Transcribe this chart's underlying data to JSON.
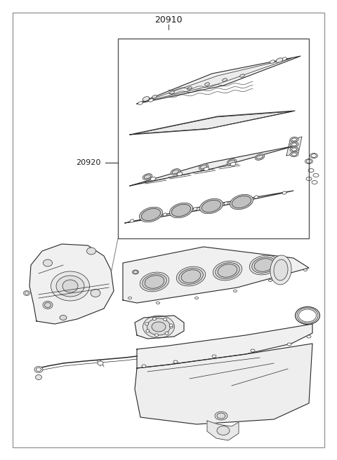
{
  "title": "20910",
  "label_20920": "20920",
  "bg_color": "#ffffff",
  "line_color": "#2a2a2a",
  "fig_width": 4.8,
  "fig_height": 6.56,
  "dpi": 100
}
